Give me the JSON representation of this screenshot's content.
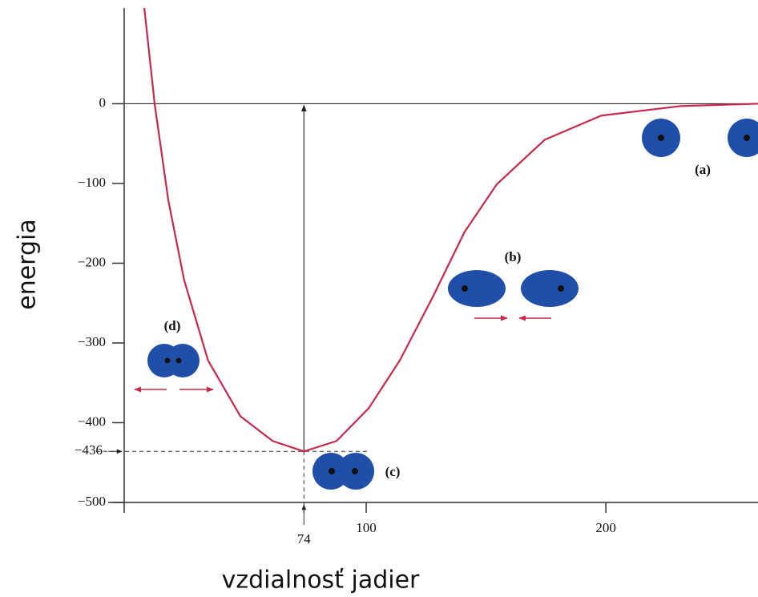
{
  "chart_data": {
    "type": "line",
    "x_label": "vzdialnosť jadier",
    "y_label": "energia",
    "x": [
      7.4,
      11.7,
      17.4,
      24,
      34,
      47.5,
      61,
      74,
      87.6,
      101,
      114,
      128,
      141,
      154.5,
      174.6,
      198,
      231,
      263.5
    ],
    "series": [
      {
        "color": "#c8284a",
        "values": [
          120,
          0,
          -121,
          -221,
          -322,
          -392,
          -423,
          -436,
          -423,
          -382,
          -322,
          -241,
          -161,
          -101,
          -45,
          -15,
          -3,
          0
        ]
      }
    ],
    "xlim": [
      0,
      263.5
    ],
    "ylim": [
      -500,
      120
    ],
    "xticks": [
      100,
      200
    ],
    "yticks": [
      {
        "value": 0,
        "label": "0"
      },
      {
        "value": -100,
        "label": "−100"
      },
      {
        "value": -200,
        "label": "−200"
      },
      {
        "value": -300,
        "label": "−300"
      },
      {
        "value": -400,
        "label": "−400"
      },
      {
        "value": -500,
        "label": "−500"
      }
    ],
    "minimum": {
      "x": 74,
      "y": {
        "value": -436,
        "label": "−436"
      }
    },
    "annotations": [
      "(a)",
      "(b)",
      "(c)",
      "(d)"
    ]
  }
}
